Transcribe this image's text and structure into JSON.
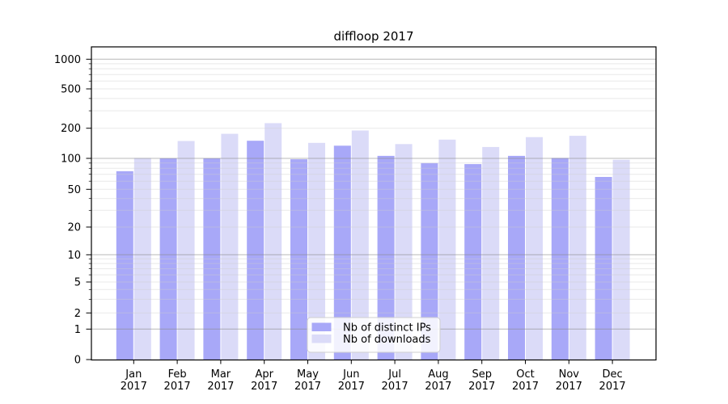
{
  "chart_data": {
    "type": "bar",
    "title": "diffloop 2017",
    "categories": [
      "Jan 2017",
      "Feb 2017",
      "Mar 2017",
      "Apr 2017",
      "May 2017",
      "Jun 2017",
      "Jul 2017",
      "Aug 2017",
      "Sep 2017",
      "Oct 2017",
      "Nov 2017",
      "Dec 2017"
    ],
    "x_axis": {
      "months": [
        "Jan",
        "Feb",
        "Mar",
        "Apr",
        "May",
        "Jun",
        "Jul",
        "Aug",
        "Sep",
        "Oct",
        "Nov",
        "Dec"
      ],
      "year": "2017"
    },
    "series": [
      {
        "name": "Nb of distinct IPs",
        "color": "#a8a8f8",
        "values": [
          75,
          100,
          100,
          150,
          98,
          134,
          106,
          90,
          88,
          106,
          101,
          66
        ]
      },
      {
        "name": "Nb of downloads",
        "color": "#dbdbf8",
        "values": [
          101,
          149,
          176,
          225,
          143,
          190,
          139,
          154,
          130,
          163,
          168,
          97
        ]
      }
    ],
    "y_axis": {
      "scale": "symlog",
      "ticks": [
        0,
        1,
        2,
        5,
        10,
        20,
        50,
        100,
        200,
        500,
        1000
      ],
      "top": 1000
    },
    "grid": {
      "major_lines": [
        1,
        10,
        100,
        1000
      ],
      "minor_on": true
    },
    "legend": {
      "position": "lower-center-inside",
      "entries": [
        "Nb of distinct IPs",
        "Nb of downloads"
      ]
    }
  },
  "colors": {
    "background": "#ffffff",
    "axis": "#000000",
    "grid_major": "#b9b9b9",
    "grid_minor": "#e9e9e9",
    "bar_distinct_ips": "#a8a8f8",
    "bar_downloads": "#dbdbf8",
    "legend_border": "#cfcfcf"
  }
}
